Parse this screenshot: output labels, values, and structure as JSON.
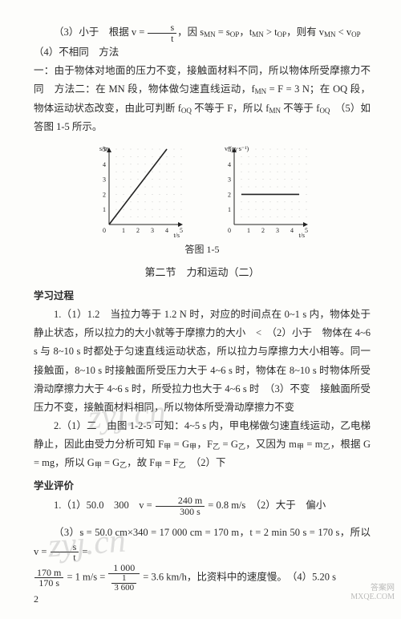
{
  "p1": "（3）小于　根据 v = ",
  "p1b": "，因 s",
  "p1c": " = s",
  "p1d": "，t",
  "p1e": " > t",
  "p1f": "，则有 v",
  "p1g": " < v",
  "p1h": "　（4）不相同　方法",
  "p2": "一：由于物体对地面的压力不变，接触面材料不同，所以物体所受摩擦力不同　方法二：在 MN 段，物体做匀速直线运动，f",
  "p2b": " = F = 3 N；在 OQ 段，物体运动状态改变，由此可判断 f",
  "p2c": " 不等于 F，所以 f",
  "p2d": " 不等于 f",
  "p2e": "　（5）如答图 1-5 所示。",
  "frac_s": "s",
  "frac_t": "t",
  "sub_MN": "MN",
  "sub_OP": "OP",
  "sub_OQ": "OQ",
  "figcaption": "答图 1-5",
  "section2": "第二节　力和运动（二）",
  "head_xxgc": "学习过程",
  "q1a": "1.（1）1.2　当拉力等于 1.2 N 时，对应的时间点在 0~1 s 内，物体处于静止状态，所以拉力的大小就等于摩擦力的大小　<　（2）小于　物体在 4~6 s 与 8~10 s 时都处于匀速直线运动状态，所以拉力与摩擦力大小相等。同一接触面，8~10 s 时接触面所受压力大于 4~6 s 时，物体在 8~10 s 时物体所受滑动摩擦力大于 4~6 s 时，所受拉力也大于 4~6 s 时　（3）不变　接触面所受压力不变，接触面材料相同，所以物体所受滑动摩擦力不变",
  "q2a": "2.（1）二　由图 1-2-5 可知：4~5 s 内，甲电梯做匀速直线运动，乙电梯静止，因此由受力分析可知 F",
  "q2b": " = G",
  "q2c": "，F",
  "q2d": " = G",
  "q2e": "，又因为 m",
  "q2f": " = m",
  "q2g": "，根据 G = mg，所以 G",
  "q2h": " = G",
  "q2i": "，故 F",
  "q2j": " = F",
  "q2k": "　（2）下",
  "sub_jia": "甲",
  "sub_yi": "乙",
  "head_xypj": "学业评价",
  "e1a": "1.（1）50.0　300　v = ",
  "e1a_num": "240 m",
  "e1a_den": "300 s",
  "e1b": " = 0.8 m/s　（2）大于　偏小",
  "e3a": "（3）s = 50.0 cm×340 = 17 000 cm = 170 m，t = 2 min 50 s = 170 s，所以 v = ",
  "e3a_fr1_num": "s",
  "e3a_fr1_den": "t",
  "e3a_mid": " = ",
  "e3b_num": "170 m",
  "e3b_den": "170 s",
  "e3c": " = 1 m/s = ",
  "e3d_num": "1 000",
  "e3d_den1": "1",
  "e3d_den2": "3 600",
  "e3e": " = 3.6 km/h，比资料中的速度慢。　（4）5.20 s",
  "page_number": "2",
  "wm_text": "zyj.cn",
  "stamp1": "答案网",
  "stamp2": "MXQE.COM",
  "chart_left": {
    "type": "line",
    "xlabel": "t/s",
    "ylabel": "s/m",
    "xlim": [
      0,
      5
    ],
    "ylim": [
      0,
      5
    ],
    "xticks": [
      1,
      2,
      3,
      4,
      5
    ],
    "yticks": [
      1,
      2,
      3,
      4,
      5
    ],
    "grid_color": "#bdbdbd",
    "line_color": "#222222",
    "bg": "#fdfdfb",
    "points_x": [
      0,
      4
    ],
    "points_y": [
      0,
      5
    ]
  },
  "chart_right": {
    "type": "line",
    "xlabel": "t/s",
    "ylabel": "v/(m·s⁻¹)",
    "xlim": [
      0,
      5
    ],
    "ylim": [
      0,
      5
    ],
    "xticks": [
      1,
      2,
      3,
      4,
      5
    ],
    "yticks": [
      1,
      2,
      3,
      4,
      5
    ],
    "grid_color": "#bdbdbd",
    "line_color": "#222222",
    "bg": "#fdfdfb",
    "seg_x": [
      0.5,
      4.5
    ],
    "seg_y": [
      2,
      2
    ]
  }
}
